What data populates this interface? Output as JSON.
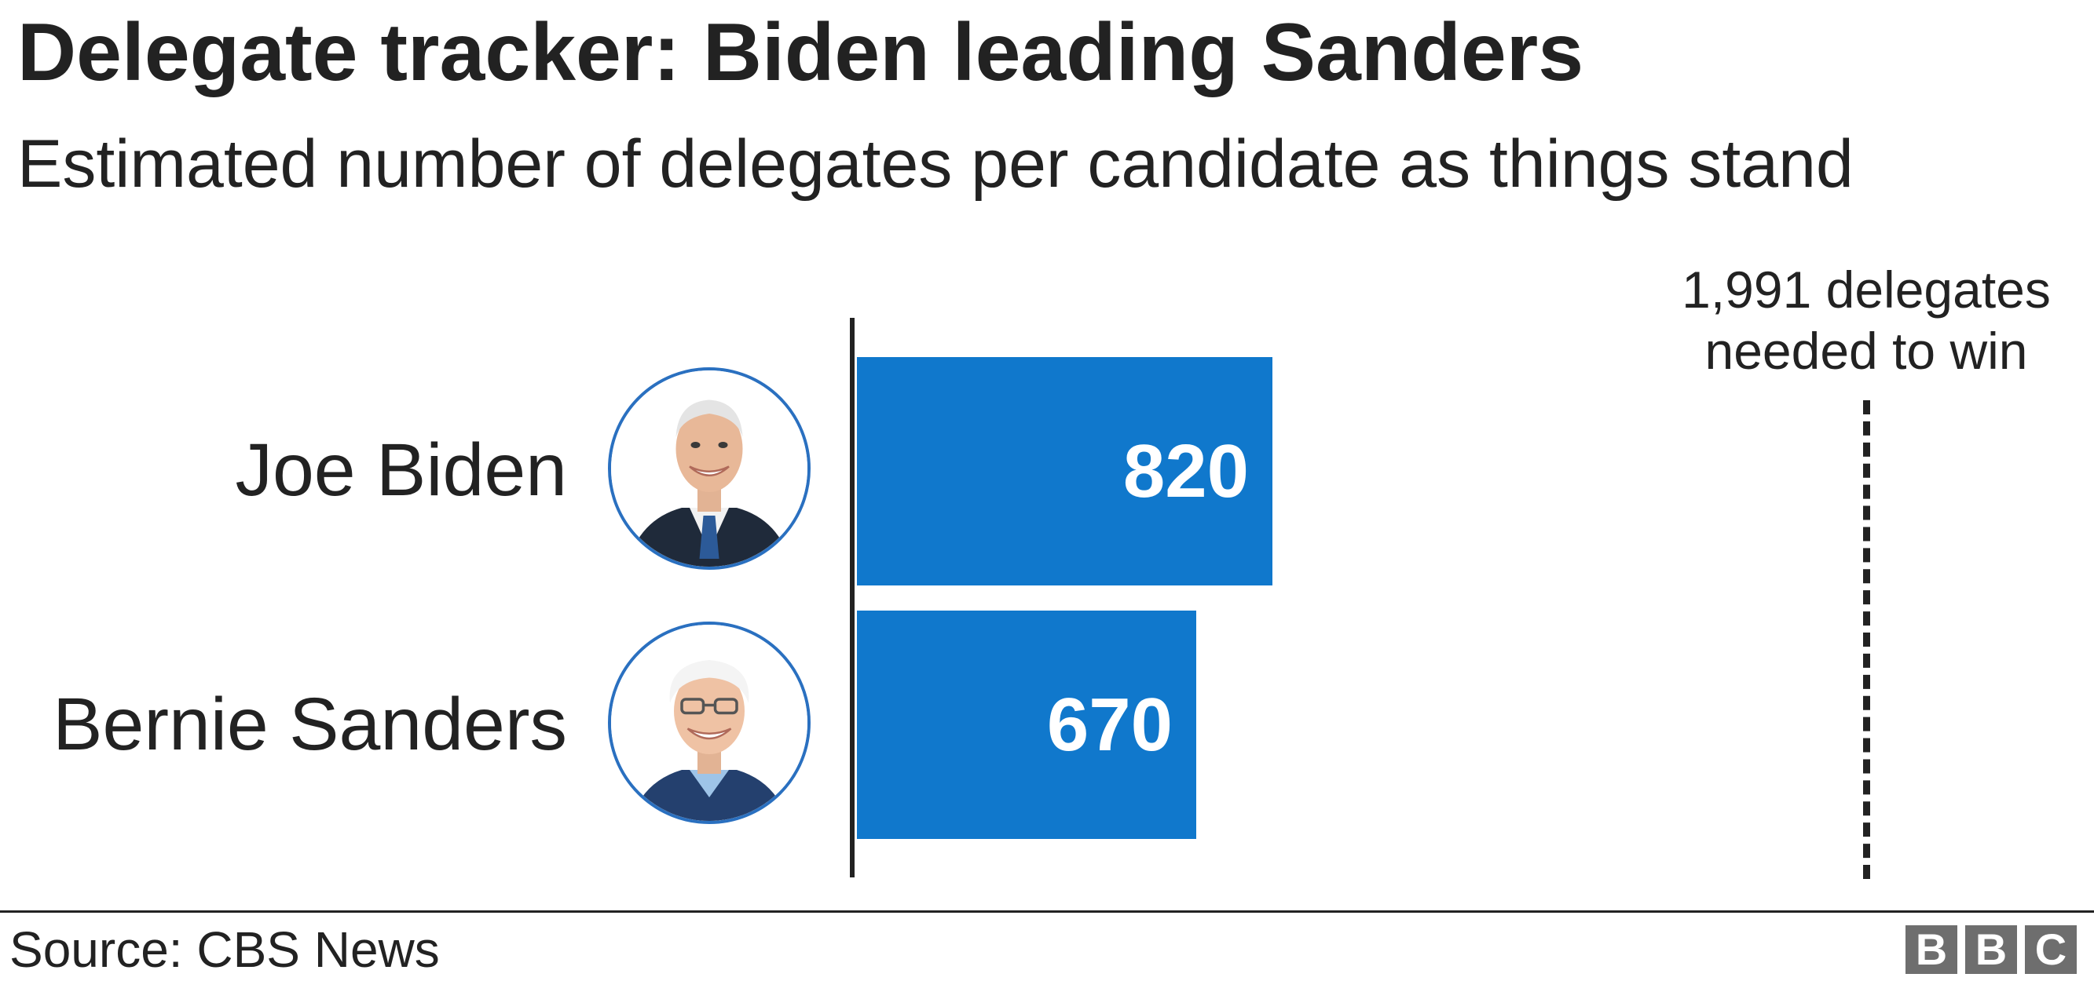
{
  "header": {
    "title": "Delegate tracker: Biden leading Sanders",
    "subtitle": "Estimated number of delegates per candidate as things stand"
  },
  "chart_data": {
    "type": "bar",
    "orientation": "horizontal",
    "categories": [
      "Joe Biden",
      "Bernie Sanders"
    ],
    "values": [
      820,
      670
    ],
    "value_labels": [
      "820",
      "670"
    ],
    "title": "Delegate tracker: Biden leading Sanders",
    "subtitle": "Estimated number of delegates per candidate as things stand",
    "xlim": [
      0,
      1991
    ],
    "bar_color": "#1078cc",
    "reference_line": {
      "value": 1991,
      "label_line1": "1,991 delegates",
      "label_line2": "needed to win",
      "style": "dashed"
    },
    "grid": false,
    "legend": "none"
  },
  "candidates": [
    {
      "name": "Joe Biden",
      "photo": "joe-biden-photo"
    },
    {
      "name": "Bernie Sanders",
      "photo": "bernie-sanders-photo"
    }
  ],
  "footer": {
    "source": "Source: CBS News",
    "logo_letters": [
      "B",
      "B",
      "C"
    ]
  },
  "colors": {
    "bar": "#1078cc",
    "avatar_ring": "#2a70c0",
    "text": "#222222",
    "logo": "#6e6e6e"
  }
}
